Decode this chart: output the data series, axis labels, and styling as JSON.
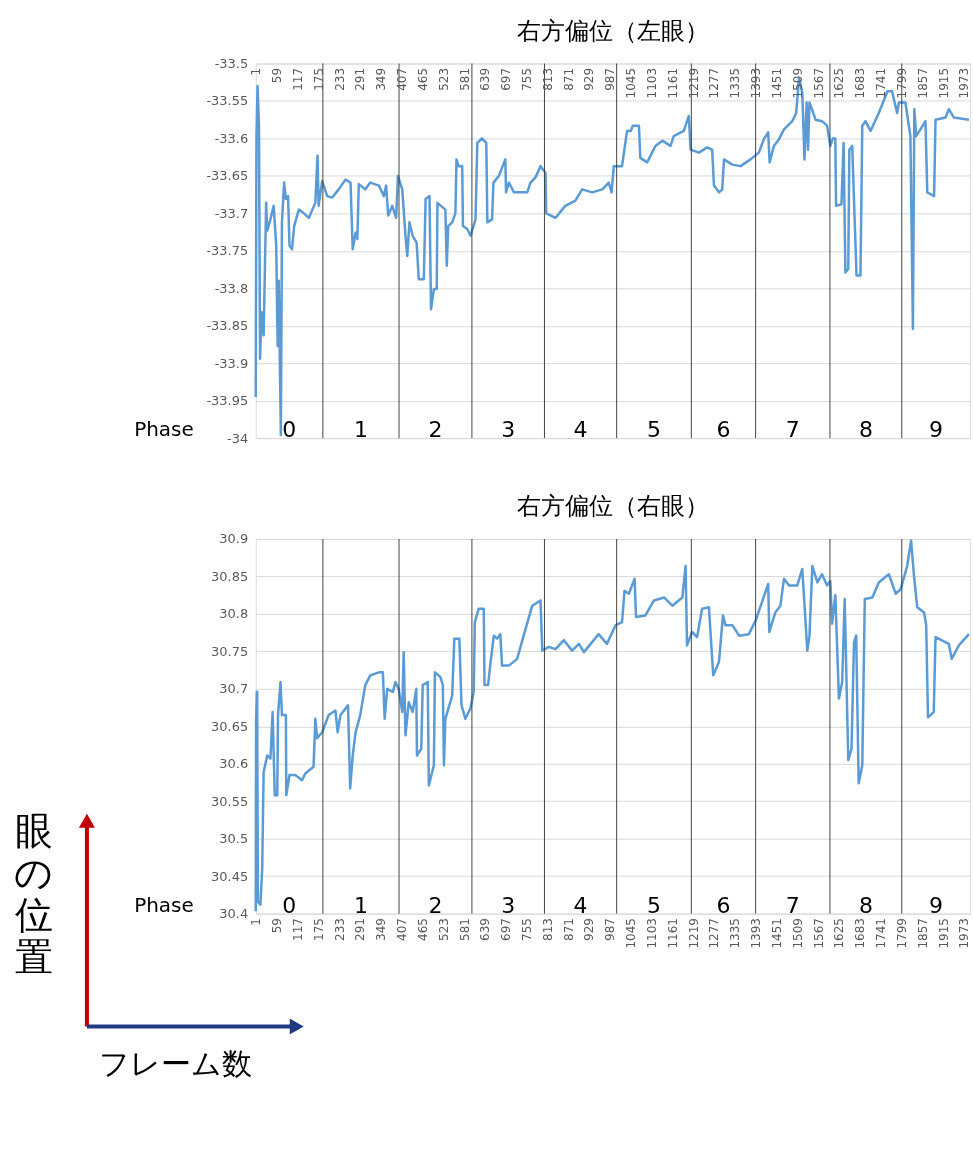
{
  "chart_data": [
    {
      "type": "line",
      "title": "右方偏位（左眼）",
      "grid": "y",
      "x": [
        1,
        3,
        6,
        10,
        13,
        17,
        23,
        30,
        33,
        42,
        51,
        58,
        62,
        65,
        71,
        74,
        80,
        85,
        91,
        95,
        102,
        108,
        121,
        135,
        149,
        167,
        173,
        176,
        186,
        200,
        214,
        232,
        251,
        265,
        271,
        279,
        284,
        288,
        306,
        320,
        344,
        358,
        364,
        370,
        381,
        392,
        397,
        409,
        418,
        423,
        429,
        438,
        449,
        455,
        469,
        474,
        485,
        489,
        497,
        505,
        507,
        529,
        533,
        537,
        548,
        557,
        560,
        566,
        576,
        578,
        590,
        599,
        613,
        618,
        631,
        643,
        646,
        659,
        663,
        678,
        696,
        698,
        706,
        720,
        743,
        757,
        766,
        780,
        794,
        808,
        810,
        836,
        863,
        891,
        910,
        938,
        966,
        984,
        992,
        998,
        1021,
        1035,
        1045,
        1051,
        1068,
        1072,
        1091,
        1114,
        1133,
        1156,
        1165,
        1193,
        1207,
        1212,
        1235,
        1258,
        1272,
        1277,
        1291,
        1300,
        1305,
        1328,
        1351,
        1379,
        1402,
        1416,
        1428,
        1432,
        1444,
        1458,
        1472,
        1495,
        1506,
        1514,
        1523,
        1529,
        1535,
        1539,
        1543,
        1560,
        1578,
        1592,
        1601,
        1608,
        1615,
        1617,
        1632,
        1638,
        1643,
        1651,
        1654,
        1662,
        1674,
        1685,
        1690,
        1699,
        1713,
        1736,
        1760,
        1773,
        1787,
        1792,
        1810,
        1824,
        1831,
        1835,
        1840,
        1852,
        1866,
        1871,
        1890,
        1894,
        1922,
        1931,
        1945,
        1987
      ],
      "series": [
        {
          "color": "#5b9bd5",
          "values": [
            -33.945,
            -33.6,
            -33.53,
            -33.583,
            -33.894,
            -33.832,
            -33.863,
            -33.686,
            -33.723,
            -33.708,
            -33.69,
            -33.743,
            -33.877,
            -33.79,
            -33.996,
            -33.712,
            -33.659,
            -33.681,
            -33.677,
            -33.743,
            -33.748,
            -33.717,
            -33.695,
            -33.7,
            -33.706,
            -33.686,
            -33.623,
            -33.69,
            -33.657,
            -33.677,
            -33.679,
            -33.668,
            -33.655,
            -33.659,
            -33.748,
            -33.726,
            -33.734,
            -33.661,
            -33.668,
            -33.659,
            -33.663,
            -33.677,
            -33.663,
            -33.703,
            -33.69,
            -33.706,
            -33.65,
            -33.668,
            -33.73,
            -33.757,
            -33.712,
            -33.73,
            -33.739,
            -33.788,
            -33.788,
            -33.681,
            -33.677,
            -33.828,
            -33.801,
            -33.801,
            -33.686,
            -33.695,
            -33.77,
            -33.717,
            -33.712,
            -33.7,
            -33.628,
            -33.637,
            -33.637,
            -33.717,
            -33.721,
            -33.73,
            -33.708,
            -33.606,
            -33.6,
            -33.606,
            -33.712,
            -33.708,
            -33.659,
            -33.65,
            -33.628,
            -33.672,
            -33.659,
            -33.672,
            -33.672,
            -33.672,
            -33.659,
            -33.652,
            -33.637,
            -33.646,
            -33.7,
            -33.706,
            -33.69,
            -33.683,
            -33.668,
            -33.672,
            -33.668,
            -33.659,
            -33.672,
            -33.637,
            -33.637,
            -33.59,
            -33.59,
            -33.583,
            -33.583,
            -33.626,
            -33.632,
            -33.61,
            -33.603,
            -33.61,
            -33.597,
            -33.59,
            -33.57,
            -33.615,
            -33.619,
            -33.612,
            -33.615,
            -33.663,
            -33.672,
            -33.668,
            -33.628,
            -33.635,
            -33.637,
            -33.628,
            -33.619,
            -33.601,
            -33.592,
            -33.632,
            -33.61,
            -33.601,
            -33.588,
            -33.577,
            -33.566,
            -33.519,
            -33.539,
            -33.628,
            -33.552,
            -33.615,
            -33.552,
            -33.575,
            -33.577,
            -33.583,
            -33.61,
            -33.6,
            -33.6,
            -33.69,
            -33.688,
            -33.606,
            -33.779,
            -33.774,
            -33.615,
            -33.61,
            -33.783,
            -33.783,
            -33.583,
            -33.577,
            -33.59,
            -33.566,
            -33.537,
            -33.537,
            -33.566,
            -33.552,
            -33.552,
            -33.597,
            -33.854,
            -33.561,
            -33.597,
            -33.588,
            -33.577,
            -33.672,
            -33.677,
            -33.575,
            -33.572,
            -33.561,
            -33.572,
            -33.575
          ]
        }
      ],
      "xlim": [
        1,
        1990
      ],
      "xticks": [
        1,
        59,
        117,
        175,
        233,
        291,
        349,
        407,
        465,
        523,
        581,
        639,
        697,
        755,
        813,
        871,
        929,
        987,
        1045,
        1103,
        1161,
        1219,
        1277,
        1335,
        1393,
        1451,
        1509,
        1567,
        1625,
        1683,
        1741,
        1799,
        1857,
        1915,
        1973
      ],
      "ylim": [
        -34,
        -33.5
      ],
      "yticks": [
        -34,
        -33.95,
        -33.9,
        -33.85,
        -33.8,
        -33.75,
        -33.7,
        -33.65,
        -33.6,
        -33.55,
        -33.5
      ],
      "ref_lines": [
        {
          "axis": "x",
          "value": 188
        },
        {
          "axis": "x",
          "value": 400
        },
        {
          "axis": "x",
          "value": 603
        },
        {
          "axis": "x",
          "value": 805
        },
        {
          "axis": "x",
          "value": 1006
        },
        {
          "axis": "x",
          "value": 1214
        },
        {
          "axis": "x",
          "value": 1393
        },
        {
          "axis": "x",
          "value": 1600
        },
        {
          "axis": "x",
          "value": 1800
        }
      ],
      "annotations": [
        "Phase",
        "0",
        "1",
        "2",
        "3",
        "4",
        "5",
        "6",
        "7",
        "8",
        "9"
      ]
    },
    {
      "type": "line",
      "title": "右方偏位（右眼）",
      "grid": "y",
      "x": [
        1,
        2,
        4,
        5,
        7,
        14,
        19,
        23,
        33,
        42,
        48,
        54,
        61,
        63,
        70,
        74,
        85,
        86,
        95,
        111,
        130,
        139,
        162,
        167,
        172,
        186,
        204,
        223,
        229,
        237,
        258,
        264,
        271,
        279,
        292,
        306,
        320,
        344,
        355,
        360,
        367,
        383,
        390,
        399,
        409,
        413,
        418,
        427,
        438,
        448,
        450,
        462,
        466,
        480,
        483,
        497,
        500,
        515,
        522,
        525,
        529,
        548,
        554,
        568,
        574,
        585,
        599,
        608,
        611,
        622,
        636,
        638,
        648,
        655,
        664,
        673,
        682,
        687,
        706,
        729,
        747,
        771,
        794,
        799,
        817,
        836,
        859,
        882,
        901,
        915,
        956,
        979,
        1003,
        1021,
        1028,
        1040,
        1056,
        1060,
        1086,
        1110,
        1138,
        1161,
        1189,
        1198,
        1202,
        1216,
        1230,
        1244,
        1263,
        1275,
        1291,
        1302,
        1309,
        1328,
        1347,
        1374,
        1393,
        1411,
        1428,
        1431,
        1448,
        1462,
        1472,
        1486,
        1509,
        1523,
        1537,
        1543,
        1551,
        1565,
        1578,
        1592,
        1601,
        1606,
        1615,
        1625,
        1634,
        1641,
        1651,
        1660,
        1667,
        1673,
        1680,
        1690,
        1697,
        1718,
        1736,
        1764,
        1783,
        1797,
        1815,
        1826,
        1834,
        1843,
        1862,
        1868,
        1873,
        1889,
        1894,
        1931,
        1939,
        1959,
        1987
      ],
      "series": [
        {
          "color": "#5b9bd5",
          "values": [
            30.403,
            30.658,
            30.696,
            30.696,
            30.416,
            30.412,
            30.46,
            30.589,
            30.611,
            30.607,
            30.669,
            30.558,
            30.558,
            30.665,
            30.709,
            30.665,
            30.665,
            30.558,
            30.585,
            30.585,
            30.578,
            30.587,
            30.596,
            30.66,
            30.634,
            30.642,
            30.665,
            30.671,
            30.642,
            30.665,
            30.678,
            30.567,
            30.611,
            30.642,
            30.665,
            30.705,
            30.718,
            30.722,
            30.722,
            30.66,
            30.7,
            30.696,
            30.709,
            30.7,
            30.669,
            30.749,
            30.638,
            30.682,
            30.669,
            30.7,
            30.611,
            30.62,
            30.705,
            30.709,
            30.571,
            30.598,
            30.722,
            30.716,
            30.705,
            30.598,
            30.66,
            30.691,
            30.767,
            30.767,
            30.678,
            30.66,
            30.674,
            30.696,
            30.789,
            30.807,
            30.807,
            30.705,
            30.705,
            30.736,
            30.771,
            30.767,
            30.773,
            30.731,
            30.731,
            30.74,
            30.771,
            30.811,
            30.818,
            30.751,
            30.756,
            30.753,
            30.765,
            30.751,
            30.76,
            30.749,
            30.773,
            30.76,
            30.785,
            30.789,
            30.831,
            30.827,
            30.847,
            30.796,
            30.798,
            30.818,
            30.822,
            30.811,
            30.822,
            30.864,
            30.758,
            30.776,
            30.769,
            30.807,
            30.809,
            30.718,
            30.736,
            30.798,
            30.785,
            30.785,
            30.771,
            30.773,
            30.791,
            30.816,
            30.84,
            30.776,
            30.802,
            30.811,
            30.847,
            30.838,
            30.838,
            30.86,
            30.751,
            30.771,
            30.864,
            30.842,
            30.853,
            30.838,
            30.844,
            30.787,
            30.825,
            30.687,
            30.709,
            30.82,
            30.605,
            30.62,
            30.762,
            30.771,
            30.574,
            30.598,
            30.82,
            30.822,
            30.842,
            30.853,
            30.827,
            30.833,
            30.864,
            30.898,
            30.851,
            30.809,
            30.802,
            30.785,
            30.662,
            30.669,
            30.769,
            30.76,
            30.74,
            30.758,
            30.773
          ]
        }
      ],
      "xlim": [
        1,
        1990
      ],
      "xticks": [
        1,
        59,
        117,
        175,
        233,
        291,
        349,
        407,
        465,
        523,
        581,
        639,
        697,
        755,
        813,
        871,
        929,
        987,
        1045,
        1103,
        1161,
        1219,
        1277,
        1335,
        1393,
        1451,
        1509,
        1567,
        1625,
        1683,
        1741,
        1799,
        1857,
        1915,
        1973
      ],
      "ylim": [
        30.4,
        30.9
      ],
      "yticks": [
        30.4,
        30.45,
        30.5,
        30.55,
        30.6,
        30.65,
        30.7,
        30.75,
        30.8,
        30.85,
        30.9
      ],
      "ref_lines": [
        {
          "axis": "x",
          "value": 188
        },
        {
          "axis": "x",
          "value": 400
        },
        {
          "axis": "x",
          "value": 603
        },
        {
          "axis": "x",
          "value": 805
        },
        {
          "axis": "x",
          "value": 1006
        },
        {
          "axis": "x",
          "value": 1214
        },
        {
          "axis": "x",
          "value": 1393
        },
        {
          "axis": "x",
          "value": 1600
        },
        {
          "axis": "x",
          "value": 1800
        }
      ],
      "annotations": [
        "Phase",
        "0",
        "1",
        "2",
        "3",
        "4",
        "5",
        "6",
        "7",
        "8",
        "9",
        "眼の位置",
        "フレーム数"
      ]
    }
  ]
}
